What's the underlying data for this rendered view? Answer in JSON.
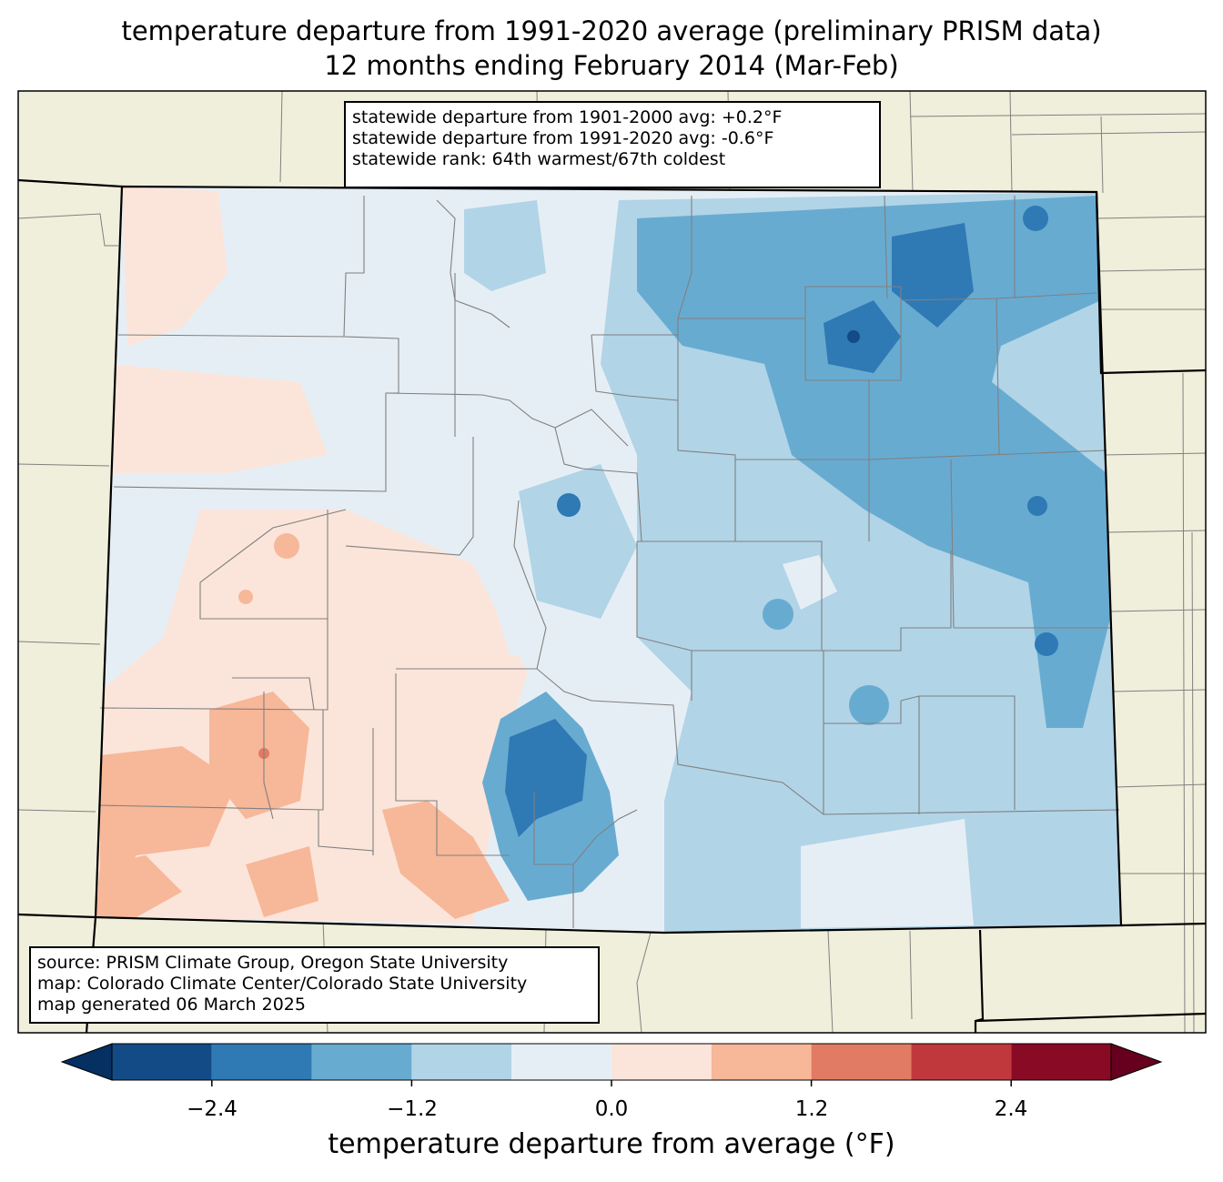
{
  "title": {
    "line1": "temperature departure from 1991-2020 average (preliminary PRISM data)",
    "line2": "12 months ending February 2014 (Mar-Feb)"
  },
  "stats": {
    "line1": "statewide departure from 1901-2000 avg: +0.2°F",
    "line2": "statewide departure from 1991-2020 avg: -0.6°F",
    "line3": "statewide rank: 64th warmest/67th coldest"
  },
  "source": {
    "line1": "source: PRISM Climate Group, Oregon State University",
    "line2": "map: Colorado Climate Center/Colorado State University",
    "line3": "map generated 06 March 2025"
  },
  "colorbar": {
    "label": "temperature departure from average (°F)",
    "ticks": [
      "−2.4",
      "−1.2",
      "0.0",
      "1.2",
      "2.4"
    ],
    "bins": [
      {
        "min": -3.0,
        "max": -2.4,
        "color": "#134b87"
      },
      {
        "min": -2.4,
        "max": -1.8,
        "color": "#2f79b5"
      },
      {
        "min": -1.8,
        "max": -1.2,
        "color": "#68abd1"
      },
      {
        "min": -1.2,
        "max": -0.6,
        "color": "#b1d4e7"
      },
      {
        "min": -0.6,
        "max": 0.0,
        "color": "#e6eef5"
      },
      {
        "min": 0.0,
        "max": 0.6,
        "color": "#fbe5da"
      },
      {
        "min": 0.6,
        "max": 1.2,
        "color": "#f7b799"
      },
      {
        "min": 1.2,
        "max": 1.8,
        "color": "#e17b63"
      },
      {
        "min": 1.8,
        "max": 2.4,
        "color": "#c0383c"
      },
      {
        "min": 2.4,
        "max": 3.0,
        "color": "#880a24"
      }
    ],
    "under_color": "#053061",
    "over_color": "#67001f"
  },
  "colors": {
    "land": "#f0efdc",
    "county_line": "#808080",
    "state_line": "#000000"
  }
}
